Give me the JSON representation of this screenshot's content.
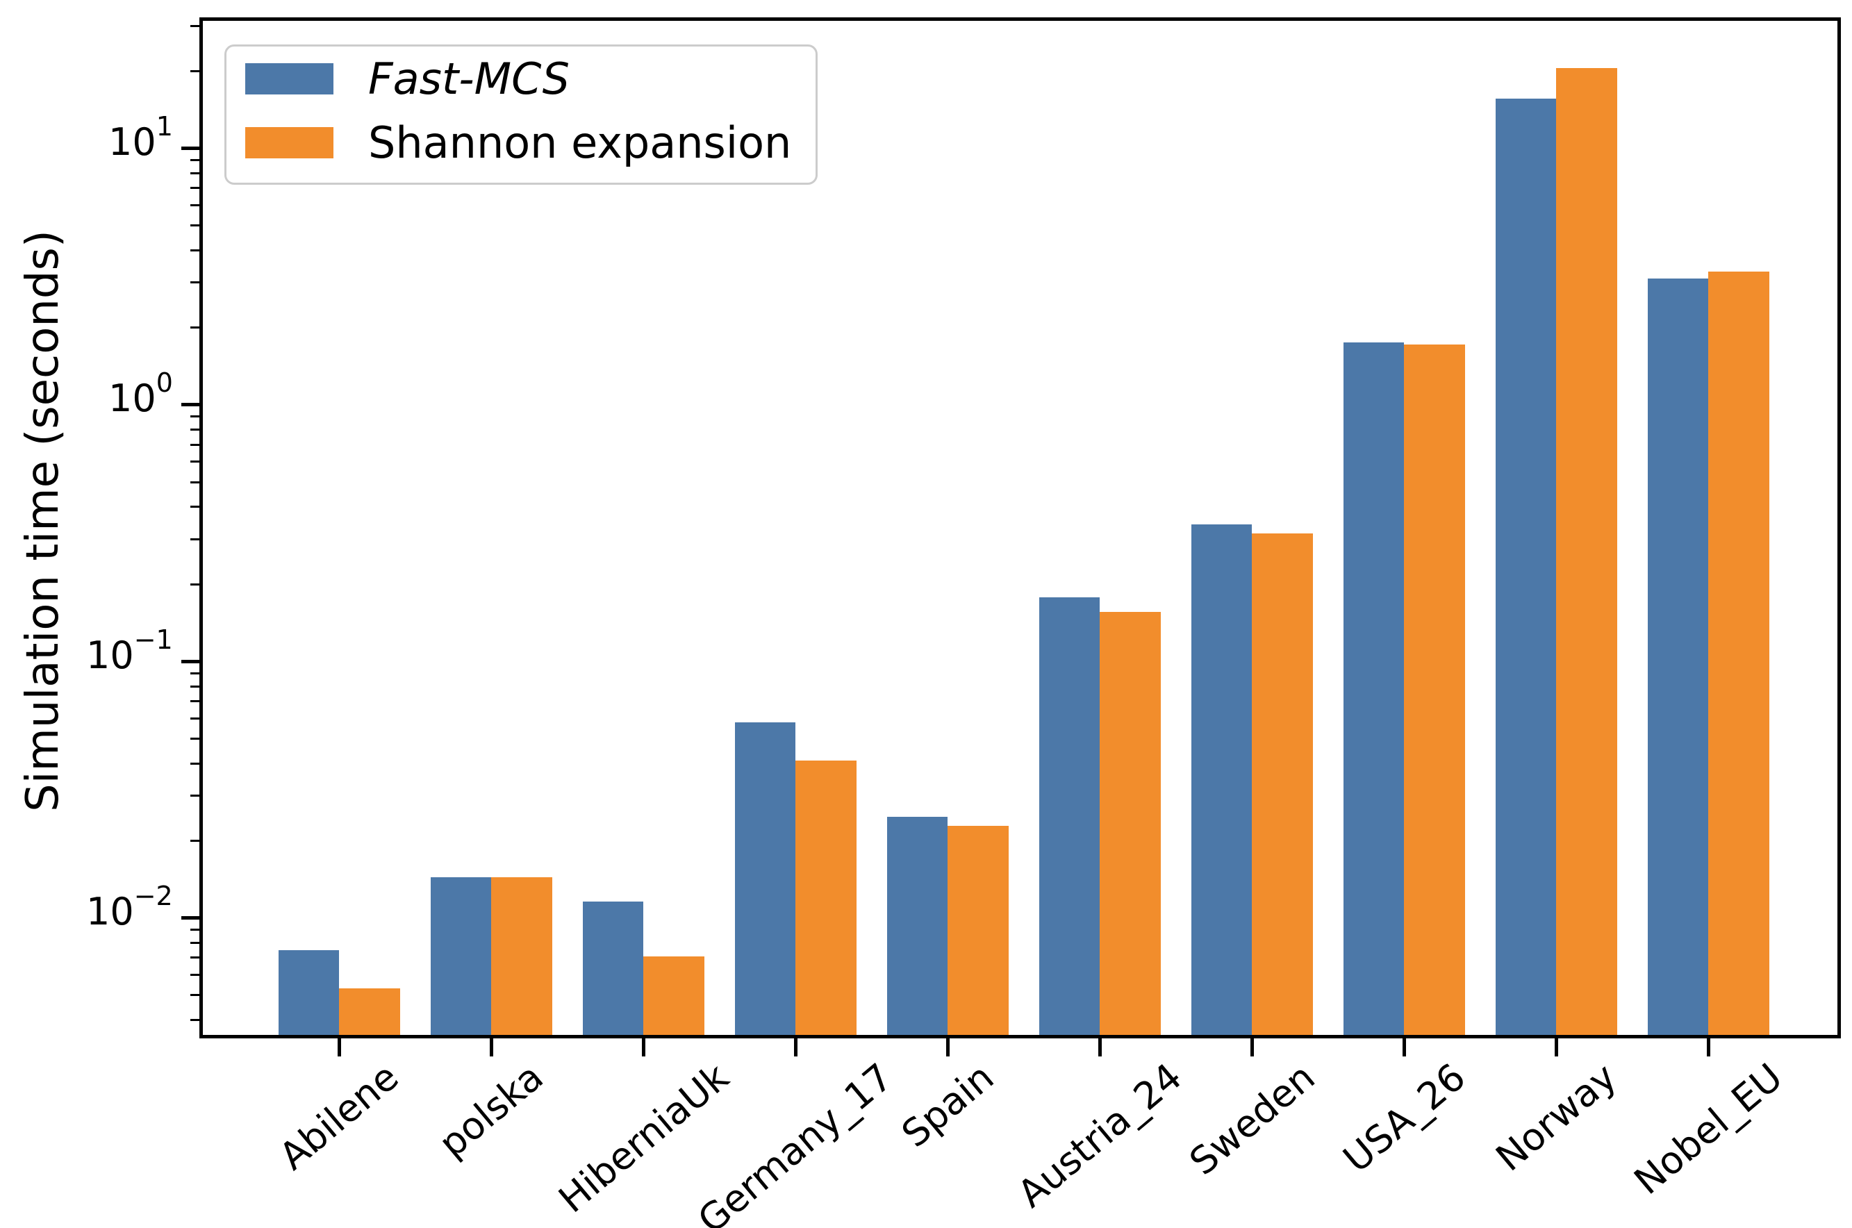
{
  "chart_data": {
    "type": "bar",
    "title": "",
    "xlabel": "",
    "ylabel": "Simulation time (seconds)",
    "y_scale": "log",
    "ylim": [
      0.0035,
      31.4
    ],
    "y_tick_exponents": [
      1,
      0,
      -1,
      -2
    ],
    "grid": false,
    "legend_position": "upper left",
    "categories": [
      "Abilene",
      "polska",
      "HiberniaUk",
      "Germany_17",
      "Spain",
      "Austria_24",
      "Sweden",
      "USA_26",
      "Norway",
      "Nobel_EU"
    ],
    "series": [
      {
        "name": "Fast-MCS",
        "italic": true,
        "color": "#4c78a8",
        "values": [
          0.0075,
          0.0144,
          0.0116,
          0.058,
          0.0248,
          0.178,
          0.343,
          1.75,
          15.6,
          3.1
        ]
      },
      {
        "name": "Shannon expansion",
        "italic": false,
        "color": "#f28d2c",
        "values": [
          0.0053,
          0.0144,
          0.0071,
          0.041,
          0.0229,
          0.156,
          0.316,
          1.72,
          20.6,
          3.3
        ]
      }
    ]
  }
}
